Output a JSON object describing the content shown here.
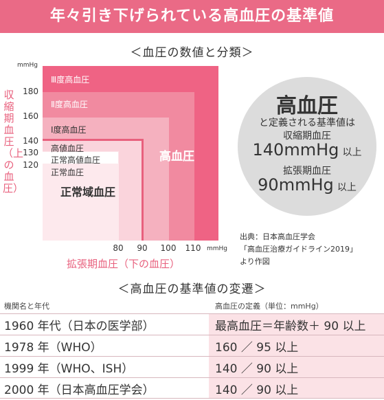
{
  "banner": {
    "title": "年々引き下げられている高血圧の基準値"
  },
  "classification": {
    "title": "＜血圧の数値と分類＞",
    "y_unit": "mmHg",
    "x_unit": "mmHg",
    "y_label": "収縮期血圧（上の血圧）",
    "x_label": "拡張期血圧（下の血圧）",
    "y_ticks": [
      "180",
      "160",
      "140",
      "130",
      "120"
    ],
    "x_ticks": [
      "80",
      "90",
      "100",
      "110"
    ],
    "bands": {
      "grade3": "Ⅲ度高血圧",
      "grade2": "Ⅱ度高血圧",
      "grade1": "Ⅰ度高血圧",
      "high_normal": "高値血圧",
      "normal_high": "正常高値血圧",
      "normal": "正常血圧",
      "normal_range": "正常域血圧",
      "hypertension": "高血圧"
    },
    "colors": {
      "grade3": "#ef6384",
      "grade2": "#f18aa0",
      "grade1": "#f5b1bf",
      "inner": "#fad4dc",
      "accent": "#e8607d"
    }
  },
  "definition": {
    "title": "高血圧",
    "line1": "と定義される基準値は",
    "systolic_label": "収縮期血圧",
    "systolic_value": "140mmHg",
    "systolic_suffix": "以上",
    "diastolic_label": "拡張期血圧",
    "diastolic_value": "90mmHg",
    "diastolic_suffix": "以上"
  },
  "source": {
    "line1": "出典：日本高血圧学会",
    "line2": "「高血圧治療ガイドライン2019」",
    "line3": "より作図"
  },
  "history": {
    "title": "＜高血圧の基準値の変遷＞",
    "headers": [
      "機関名と年代",
      "高血圧の定義（単位：mmHg）"
    ],
    "rows": [
      [
        "1960 年代（日本の医学部）",
        "最高血圧＝年齢数＋ 90 以上"
      ],
      [
        "1978 年（WHO）",
        "160 ／ 95 以上"
      ],
      [
        "1999 年（WHO、ISH）",
        "140 ／ 90 以上"
      ],
      [
        "2000 年（日本高血圧学会）",
        "140 ／ 90 以上"
      ]
    ]
  }
}
